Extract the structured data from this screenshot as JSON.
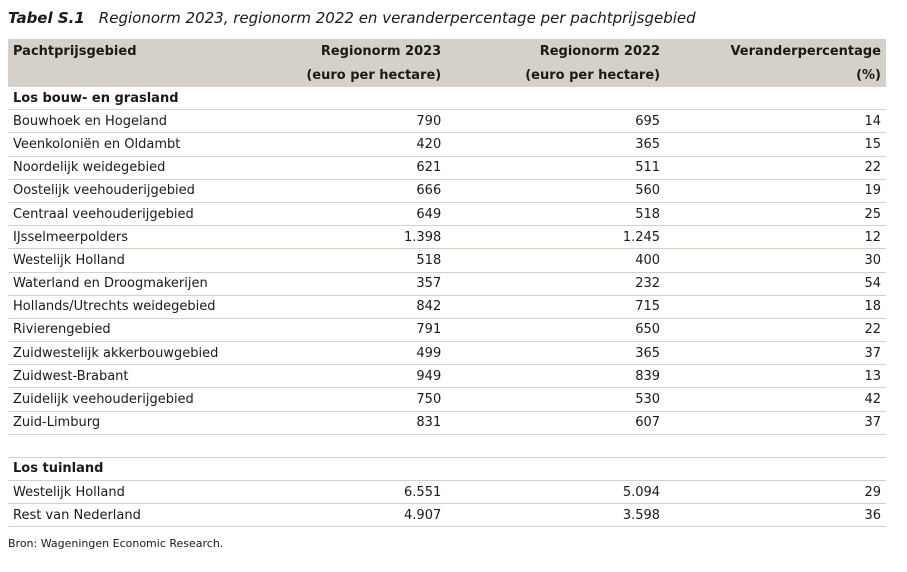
{
  "caption": {
    "number": "Tabel S.1",
    "title": "Regionorm 2023, regionorm 2022 en veranderpercentage per pachtprijsgebied"
  },
  "header": {
    "col1": "Pachtprijsgebied",
    "col2_line1": "Regionorm 2023",
    "col2_line2": "(euro per hectare)",
    "col3_line1": "Regionorm 2022",
    "col3_line2": "(euro per hectare)",
    "col4_line1": "Veranderpercentage",
    "col4_line2": "(%)"
  },
  "section1": {
    "title": "Los bouw- en grasland",
    "rows": [
      {
        "region": "Bouwhoek en Hogeland",
        "r2023": "790",
        "r2022": "695",
        "pct": "14"
      },
      {
        "region": "Veenkoloniën en Oldambt",
        "r2023": "420",
        "r2022": "365",
        "pct": "15"
      },
      {
        "region": "Noordelijk weidegebied",
        "r2023": "621",
        "r2022": "511",
        "pct": "22"
      },
      {
        "region": "Oostelijk veehouderijgebied",
        "r2023": "666",
        "r2022": "560",
        "pct": "19"
      },
      {
        "region": "Centraal veehouderijgebied",
        "r2023": "649",
        "r2022": "518",
        "pct": "25"
      },
      {
        "region": "IJsselmeerpolders",
        "r2023": "1.398",
        "r2022": "1.245",
        "pct": "12"
      },
      {
        "region": "Westelijk Holland",
        "r2023": "518",
        "r2022": "400",
        "pct": "30"
      },
      {
        "region": "Waterland en Droogmakerijen",
        "r2023": "357",
        "r2022": "232",
        "pct": "54"
      },
      {
        "region": "Hollands/Utrechts weidegebied",
        "r2023": "842",
        "r2022": "715",
        "pct": "18"
      },
      {
        "region": "Rivierengebied",
        "r2023": "791",
        "r2022": "650",
        "pct": "22"
      },
      {
        "region": "Zuidwestelijk akkerbouwgebied",
        "r2023": "499",
        "r2022": "365",
        "pct": "37"
      },
      {
        "region": "Zuidwest-Brabant",
        "r2023": "949",
        "r2022": "839",
        "pct": "13"
      },
      {
        "region": "Zuidelijk veehouderijgebied",
        "r2023": "750",
        "r2022": "530",
        "pct": "42"
      },
      {
        "region": "Zuid-Limburg",
        "r2023": "831",
        "r2022": "607",
        "pct": "37"
      }
    ]
  },
  "section2": {
    "title": "Los tuinland",
    "rows": [
      {
        "region": "Westelijk Holland",
        "r2023": "6.551",
        "r2022": "5.094",
        "pct": "29"
      },
      {
        "region": "Rest van Nederland",
        "r2023": "4.907",
        "r2022": "3.598",
        "pct": "36"
      }
    ]
  },
  "source": "Bron: Wageningen Economic Research."
}
